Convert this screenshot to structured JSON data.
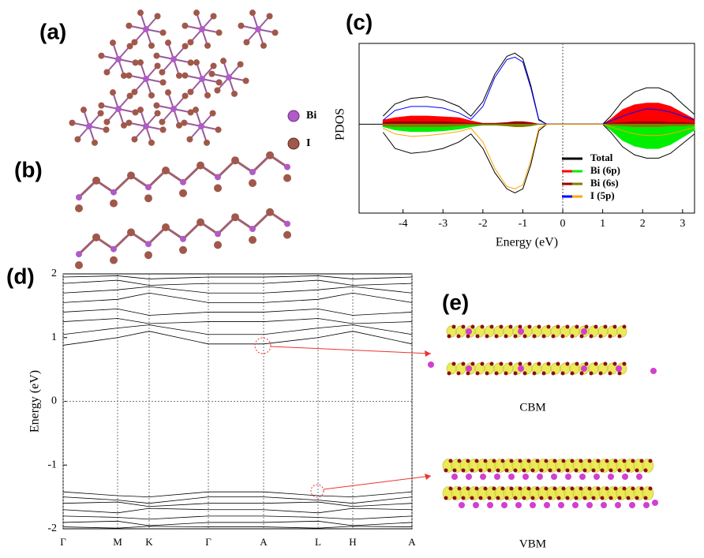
{
  "panels": {
    "a": "(a)",
    "b": "(b)",
    "c": "(c)",
    "d": "(d)",
    "e": "(e)"
  },
  "atoms": [
    "Bi",
    "I"
  ],
  "isosurfaces": {
    "cbm": "CBM",
    "vbm": "VBM"
  },
  "chart_data": [
    {
      "type": "pdos",
      "x_label": "Energy (eV)",
      "y_label": "PDOS",
      "x": [
        -4.5,
        -4.2,
        -3.8,
        -3.4,
        -3.0,
        -2.6,
        -2.3,
        -2.0,
        -1.7,
        -1.4,
        -1.2,
        -1.0,
        -0.8,
        -0.6,
        -0.4,
        0,
        1.0,
        1.2,
        1.5,
        1.8,
        2.1,
        2.4,
        2.7,
        3.0,
        3.3
      ],
      "series": [
        {
          "name": "Total",
          "color": "#000000",
          "color_down": "#000000",
          "fill": false,
          "values": [
            0.1,
            0.25,
            0.32,
            0.34,
            0.3,
            0.22,
            0.1,
            0.28,
            0.62,
            0.84,
            0.88,
            0.81,
            0.48,
            0.06,
            0,
            0,
            0,
            0.1,
            0.29,
            0.4,
            0.45,
            0.45,
            0.39,
            0.25,
            0.12
          ],
          "values_down": [
            -0.1,
            -0.3,
            -0.36,
            -0.34,
            -0.3,
            -0.22,
            -0.12,
            -0.3,
            -0.6,
            -0.8,
            -0.85,
            -0.8,
            -0.5,
            -0.08,
            0,
            0,
            0,
            -0.1,
            -0.28,
            -0.38,
            -0.42,
            -0.42,
            -0.36,
            -0.24,
            -0.12
          ]
        },
        {
          "name": "Bi (6p)",
          "color": "#ff0000",
          "color_down": "#00ee00",
          "fill": true,
          "values": [
            0.05,
            0.08,
            0.1,
            0.1,
            0.09,
            0.08,
            0.04,
            0.01,
            0.01,
            0.01,
            0.02,
            0.02,
            0.01,
            0,
            0,
            0,
            0,
            0.06,
            0.18,
            0.24,
            0.26,
            0.26,
            0.22,
            0.14,
            0.06
          ],
          "values_down": [
            -0.03,
            -0.07,
            -0.09,
            -0.09,
            -0.08,
            -0.06,
            -0.03,
            -0.01,
            -0.01,
            -0.01,
            -0.01,
            -0.01,
            -0.01,
            0,
            0,
            0,
            0,
            -0.07,
            -0.2,
            -0.27,
            -0.3,
            -0.3,
            -0.25,
            -0.16,
            -0.07
          ]
        },
        {
          "name": "Bi (6s)",
          "color": "#990000",
          "color_down": "#808000",
          "fill": true,
          "values": [
            0.02,
            0.03,
            0.03,
            0.03,
            0.03,
            0.02,
            0.01,
            0.01,
            0.01,
            0.02,
            0.03,
            0.03,
            0.02,
            0,
            0,
            0,
            0,
            0.01,
            0.02,
            0.03,
            0.03,
            0.03,
            0.02,
            0.02,
            0.01
          ],
          "values_down": [
            -0.02,
            -0.03,
            -0.03,
            -0.03,
            -0.03,
            -0.02,
            -0.01,
            -0.01,
            -0.01,
            -0.02,
            -0.03,
            -0.03,
            -0.02,
            0,
            0,
            0,
            0,
            -0.01,
            -0.02,
            -0.03,
            -0.03,
            -0.03,
            -0.02,
            -0.02,
            -0.01
          ]
        },
        {
          "name": "I (5p)",
          "color": "#0000ff",
          "color_down": "#ffa500",
          "fill": false,
          "values": [
            0.05,
            0.17,
            0.22,
            0.22,
            0.2,
            0.14,
            0.06,
            0.22,
            0.58,
            0.8,
            0.83,
            0.77,
            0.45,
            0.05,
            0,
            0,
            0,
            0.04,
            0.1,
            0.15,
            0.19,
            0.18,
            0.15,
            0.1,
            0.05
          ],
          "values_down": [
            -0.05,
            -0.12,
            -0.15,
            -0.14,
            -0.12,
            -0.09,
            -0.05,
            -0.22,
            -0.55,
            -0.77,
            -0.8,
            -0.75,
            -0.45,
            -0.05,
            0,
            0,
            0,
            -0.03,
            -0.08,
            -0.12,
            -0.14,
            -0.14,
            -0.12,
            -0.08,
            -0.04
          ]
        }
      ],
      "xlim": [
        -5.1,
        3.3
      ],
      "xticks": [
        -4,
        -3,
        -2,
        -1,
        0,
        1,
        2,
        3
      ],
      "ylim": [
        -1.1,
        1.0
      ],
      "vline": 0,
      "legend": "lower right"
    },
    {
      "type": "bands",
      "y_label": "Energy (eV)",
      "x": [
        0,
        0.69,
        1.09,
        1.84,
        2.54,
        3.23,
        3.67,
        4.42
      ],
      "xlim": [
        0,
        4.42
      ],
      "xticks": [
        {
          "value": 0,
          "label": "Γ"
        },
        {
          "value": 0.69,
          "label": "M"
        },
        {
          "value": 1.09,
          "label": "K"
        },
        {
          "value": 1.84,
          "label": "Γ"
        },
        {
          "value": 2.54,
          "label": "A"
        },
        {
          "value": 3.23,
          "label": "L"
        },
        {
          "value": 3.67,
          "label": "H"
        },
        {
          "value": 4.42,
          "label": "A"
        }
      ],
      "ylim": [
        -2,
        2
      ],
      "yticks": [
        -2,
        -1,
        0,
        1,
        2
      ],
      "hline": 0,
      "kpoint_lines": true,
      "series": [
        {
          "color": "#000000",
          "values": [
            0.88,
            1.0,
            1.1,
            0.9,
            0.9,
            1.0,
            1.1,
            0.9
          ]
        },
        {
          "color": "#000000",
          "values": [
            1.05,
            1.15,
            1.2,
            1.05,
            1.05,
            1.15,
            1.2,
            1.05
          ]
        },
        {
          "color": "#000000",
          "values": [
            1.25,
            1.3,
            1.22,
            1.25,
            1.25,
            1.3,
            1.22,
            1.25
          ]
        },
        {
          "color": "#000000",
          "values": [
            1.4,
            1.45,
            1.35,
            1.4,
            1.4,
            1.45,
            1.35,
            1.4
          ]
        },
        {
          "color": "#000000",
          "values": [
            1.55,
            1.6,
            1.7,
            1.55,
            1.55,
            1.6,
            1.7,
            1.55
          ]
        },
        {
          "color": "#000000",
          "values": [
            1.7,
            1.75,
            1.8,
            1.7,
            1.7,
            1.75,
            1.8,
            1.7
          ]
        },
        {
          "color": "#000000",
          "values": [
            1.85,
            1.9,
            1.82,
            1.85,
            1.85,
            1.9,
            1.82,
            1.85
          ]
        },
        {
          "color": "#000000",
          "values": [
            1.95,
            1.97,
            1.92,
            1.95,
            1.95,
            1.97,
            1.92,
            1.95
          ]
        },
        {
          "color": "#000000",
          "values": [
            -1.42,
            -1.48,
            -1.5,
            -1.42,
            -1.42,
            -1.48,
            -1.5,
            -1.42
          ]
        },
        {
          "color": "#000000",
          "values": [
            -1.5,
            -1.55,
            -1.6,
            -1.5,
            -1.5,
            -1.55,
            -1.6,
            -1.5
          ]
        },
        {
          "color": "#000000",
          "values": [
            -1.6,
            -1.58,
            -1.65,
            -1.6,
            -1.6,
            -1.58,
            -1.65,
            -1.6
          ]
        },
        {
          "color": "#000000",
          "values": [
            -1.7,
            -1.75,
            -1.68,
            -1.7,
            -1.7,
            -1.75,
            -1.68,
            -1.7
          ]
        },
        {
          "color": "#000000",
          "values": [
            -1.8,
            -1.82,
            -1.85,
            -1.8,
            -1.8,
            -1.82,
            -1.85,
            -1.8
          ]
        },
        {
          "color": "#000000",
          "values": [
            -1.9,
            -1.88,
            -1.95,
            -1.9,
            -1.9,
            -1.88,
            -1.95,
            -1.9
          ]
        },
        {
          "color": "#000000",
          "values": [
            -1.97,
            -1.99,
            -1.96,
            -1.97,
            -1.97,
            -1.99,
            -1.96,
            -1.97
          ]
        }
      ]
    }
  ]
}
